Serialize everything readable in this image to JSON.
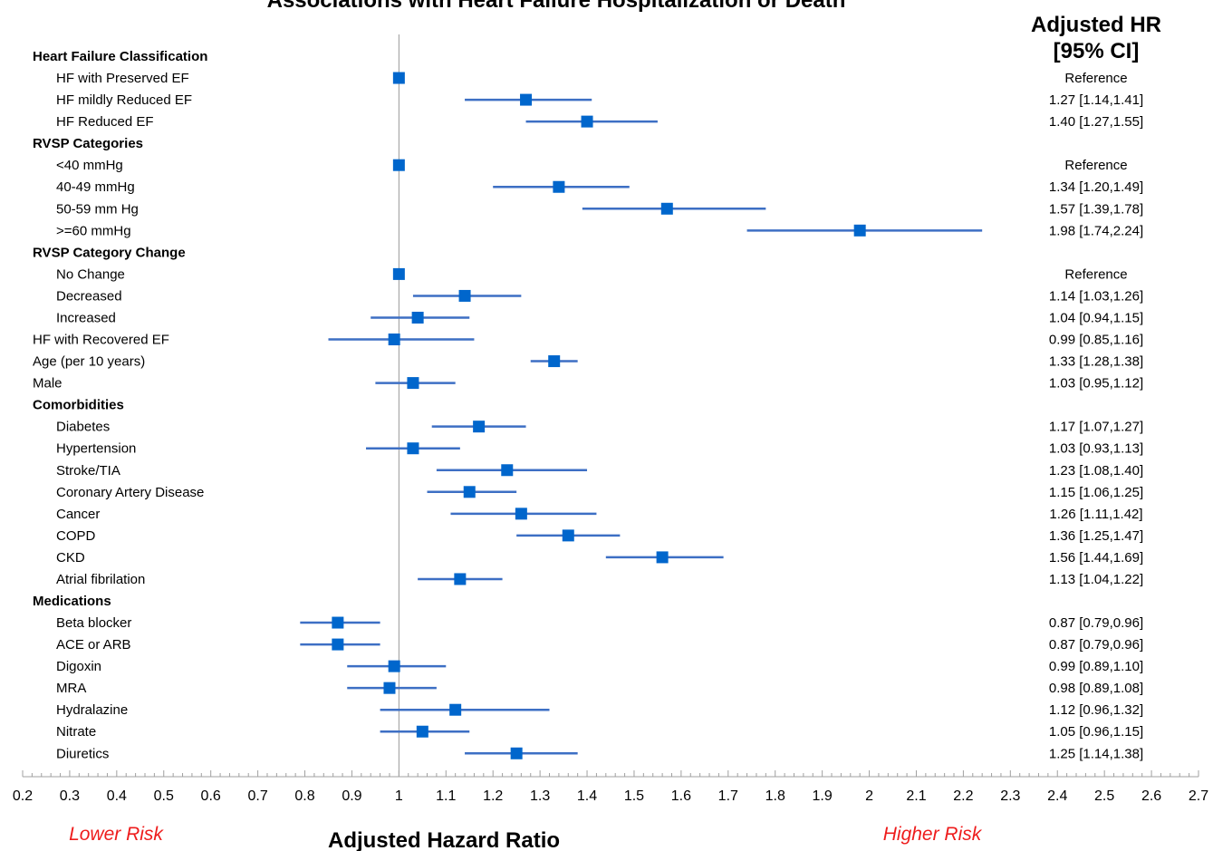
{
  "chart_data": {
    "type": "forest",
    "title": "Associations with Heart Failure Hospitalization or Death",
    "hr_header": [
      "Adjusted HR",
      "[95% CI]"
    ],
    "xlabel": "Adjusted Hazard Ratio",
    "lower_risk_label": "Lower Risk",
    "higher_risk_label": "Higher Risk",
    "xlim": [
      0.2,
      2.7
    ],
    "reference_line": 1,
    "x_ticks": [
      "0.2",
      "0.3",
      "0.4",
      "0.5",
      "0.6",
      "0.7",
      "0.8",
      "0.9",
      "1",
      "1.1",
      "1.2",
      "1.3",
      "1.4",
      "1.5",
      "1.6",
      "1.7",
      "1.8",
      "1.9",
      "2",
      "2.1",
      "2.2",
      "2.3",
      "2.4",
      "2.5",
      "2.6",
      "2.7"
    ],
    "marker_color": "#0066cc",
    "ci_color": "#3d6fc4",
    "rows": [
      {
        "label": "Heart Failure Classification",
        "section": true
      },
      {
        "label": "HF with Preserved EF",
        "indent": true,
        "hr": 1,
        "text": "Reference"
      },
      {
        "label": "HF mildly Reduced EF",
        "indent": true,
        "hr": 1.27,
        "lo": 1.14,
        "hi": 1.41,
        "text": "1.27 [1.14,1.41]"
      },
      {
        "label": "HF Reduced EF",
        "indent": true,
        "hr": 1.4,
        "lo": 1.27,
        "hi": 1.55,
        "text": "1.40 [1.27,1.55]"
      },
      {
        "label": "RVSP Categories",
        "section": true
      },
      {
        "label": "<40 mmHg",
        "indent": true,
        "hr": 1,
        "text": "Reference"
      },
      {
        "label": "40-49 mmHg",
        "indent": true,
        "hr": 1.34,
        "lo": 1.2,
        "hi": 1.49,
        "text": "1.34 [1.20,1.49]"
      },
      {
        "label": "50-59 mm Hg",
        "indent": true,
        "hr": 1.57,
        "lo": 1.39,
        "hi": 1.78,
        "text": "1.57 [1.39,1.78]"
      },
      {
        "label": ">=60 mmHg",
        "indent": true,
        "hr": 1.98,
        "lo": 1.74,
        "hi": 2.24,
        "text": "1.98 [1.74,2.24]"
      },
      {
        "label": "RVSP Category Change",
        "section": true
      },
      {
        "label": "No Change",
        "indent": true,
        "hr": 1,
        "text": "Reference"
      },
      {
        "label": "Decreased",
        "indent": true,
        "hr": 1.14,
        "lo": 1.03,
        "hi": 1.26,
        "text": "1.14 [1.03,1.26]"
      },
      {
        "label": "Increased",
        "indent": true,
        "hr": 1.04,
        "lo": 0.94,
        "hi": 1.15,
        "text": "1.04 [0.94,1.15]"
      },
      {
        "label": "HF with Recovered EF",
        "hr": 0.99,
        "lo": 0.85,
        "hi": 1.16,
        "text": "0.99 [0.85,1.16]"
      },
      {
        "label": "Age (per 10 years)",
        "hr": 1.33,
        "lo": 1.28,
        "hi": 1.38,
        "text": "1.33 [1.28,1.38]"
      },
      {
        "label": "Male",
        "hr": 1.03,
        "lo": 0.95,
        "hi": 1.12,
        "text": "1.03 [0.95,1.12]"
      },
      {
        "label": "Comorbidities",
        "section": true
      },
      {
        "label": "Diabetes",
        "indent": true,
        "hr": 1.17,
        "lo": 1.07,
        "hi": 1.27,
        "text": "1.17 [1.07,1.27]"
      },
      {
        "label": "Hypertension",
        "indent": true,
        "hr": 1.03,
        "lo": 0.93,
        "hi": 1.13,
        "text": "1.03 [0.93,1.13]"
      },
      {
        "label": "Stroke/TIA",
        "indent": true,
        "hr": 1.23,
        "lo": 1.08,
        "hi": 1.4,
        "text": "1.23 [1.08,1.40]"
      },
      {
        "label": "Coronary Artery Disease",
        "indent": true,
        "hr": 1.15,
        "lo": 1.06,
        "hi": 1.25,
        "text": "1.15 [1.06,1.25]"
      },
      {
        "label": "Cancer",
        "indent": true,
        "hr": 1.26,
        "lo": 1.11,
        "hi": 1.42,
        "text": "1.26 [1.11,1.42]"
      },
      {
        "label": "COPD",
        "indent": true,
        "hr": 1.36,
        "lo": 1.25,
        "hi": 1.47,
        "text": "1.36 [1.25,1.47]"
      },
      {
        "label": "CKD",
        "indent": true,
        "hr": 1.56,
        "lo": 1.44,
        "hi": 1.69,
        "text": "1.56 [1.44,1.69]"
      },
      {
        "label": "Atrial fibrilation",
        "indent": true,
        "hr": 1.13,
        "lo": 1.04,
        "hi": 1.22,
        "text": "1.13 [1.04,1.22]"
      },
      {
        "label": "Medications",
        "section": true
      },
      {
        "label": "Beta blocker",
        "indent": true,
        "hr": 0.87,
        "lo": 0.79,
        "hi": 0.96,
        "text": "0.87 [0.79,0.96]"
      },
      {
        "label": "ACE or ARB",
        "indent": true,
        "hr": 0.87,
        "lo": 0.79,
        "hi": 0.96,
        "text": "0.87 [0.79,0.96]"
      },
      {
        "label": "Digoxin",
        "indent": true,
        "hr": 0.99,
        "lo": 0.89,
        "hi": 1.1,
        "text": "0.99 [0.89,1.10]"
      },
      {
        "label": "MRA",
        "indent": true,
        "hr": 0.98,
        "lo": 0.89,
        "hi": 1.08,
        "text": "0.98 [0.89,1.08]"
      },
      {
        "label": "Hydralazine",
        "indent": true,
        "hr": 1.12,
        "lo": 0.96,
        "hi": 1.32,
        "text": "1.12 [0.96,1.32]"
      },
      {
        "label": "Nitrate",
        "indent": true,
        "hr": 1.05,
        "lo": 0.96,
        "hi": 1.15,
        "text": "1.05 [0.96,1.15]"
      },
      {
        "label": "Diuretics",
        "indent": true,
        "hr": 1.25,
        "lo": 1.14,
        "hi": 1.38,
        "text": "1.25 [1.14,1.38]"
      }
    ]
  }
}
